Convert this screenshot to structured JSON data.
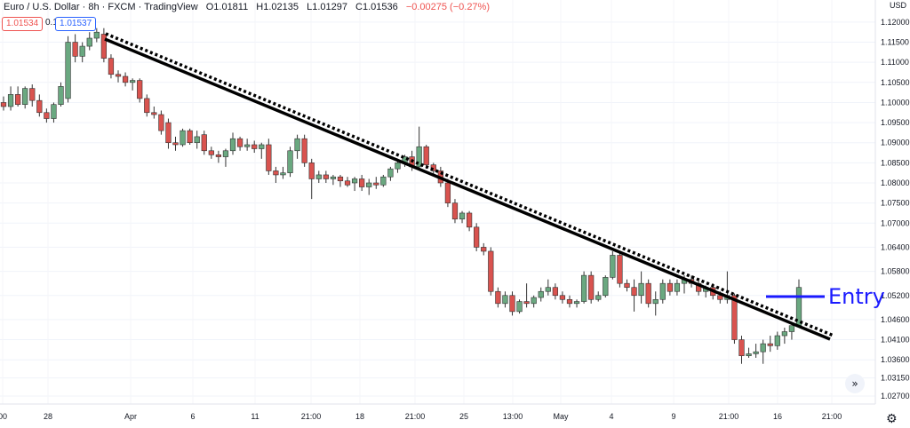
{
  "header": {
    "symbol": "Euro / U.S. Dollar · 8h · FXCM · TradingView",
    "open": "O1.01811",
    "high": "H1.02135",
    "low": "L1.01297",
    "close": "C1.01536",
    "change": "−0.00275 (−0.27%)",
    "bid": "1.01534",
    "spread": "0.1",
    "ask": "1.01537",
    "currency": "USD"
  },
  "colors": {
    "up": "#6aa880",
    "down": "#d9534f",
    "line": "#000000",
    "entry": "#1a1aff",
    "axis_text": "#131722"
  },
  "annotations": {
    "entry_label": "Entry"
  },
  "icons": {
    "scroll": "double-chevron-right-icon",
    "settings": "gear-icon"
  },
  "chart_data": {
    "type": "candlestick",
    "title": "Euro / U.S. Dollar · 8h · FXCM · TradingView",
    "ylim": [
      1.025,
      1.1255
    ],
    "yticks": [
      "1.12000",
      "1.11500",
      "1.11000",
      "1.10500",
      "1.10000",
      "1.09500",
      "1.09000",
      "1.08500",
      "1.08000",
      "1.07500",
      "1.07000",
      "1.06400",
      "1.05800",
      "1.05200",
      "1.04600",
      "1.04100",
      "1.03600",
      "1.03150",
      "1.02700"
    ],
    "xticks": [
      "00",
      "28",
      "Apr",
      "6",
      "11",
      "21:00",
      "18",
      "21:00",
      "25",
      "13:00",
      "May",
      "4",
      "9",
      "21:00",
      "16",
      "21:00"
    ],
    "current_price": "1.05200",
    "candles": [
      [
        1.1,
        1.1015,
        1.098,
        1.099
      ],
      [
        1.099,
        1.104,
        1.098,
        1.102
      ],
      [
        1.102,
        1.104,
        1.099,
        1.0995
      ],
      [
        1.0995,
        1.104,
        1.0985,
        1.1035
      ],
      [
        1.1035,
        1.1045,
        1.099,
        1.1005
      ],
      [
        1.1005,
        1.102,
        1.0965,
        1.0975
      ],
      [
        1.0975,
        1.0985,
        1.095,
        1.096
      ],
      [
        1.096,
        1.1,
        1.095,
        1.0995
      ],
      [
        1.0995,
        1.105,
        1.099,
        1.104
      ],
      [
        1.101,
        1.1165,
        1.1,
        1.115
      ],
      [
        1.115,
        1.117,
        1.11,
        1.1115
      ],
      [
        1.1115,
        1.115,
        1.11,
        1.114
      ],
      [
        1.114,
        1.1175,
        1.113,
        1.116
      ],
      [
        1.116,
        1.1185,
        1.115,
        1.1175
      ],
      [
        1.117,
        1.1185,
        1.11,
        1.111
      ],
      [
        1.111,
        1.112,
        1.106,
        1.107
      ],
      [
        1.107,
        1.108,
        1.105,
        1.1065
      ],
      [
        1.1065,
        1.1075,
        1.104,
        1.105
      ],
      [
        1.105,
        1.106,
        1.103,
        1.1055
      ],
      [
        1.1055,
        1.106,
        1.1,
        1.101
      ],
      [
        1.101,
        1.102,
        1.0965,
        1.0975
      ],
      [
        1.0975,
        1.099,
        1.096,
        1.097
      ],
      [
        1.097,
        1.098,
        1.092,
        1.093
      ],
      [
        1.095,
        1.096,
        1.0885,
        1.09
      ],
      [
        1.09,
        1.0915,
        1.088,
        1.0895
      ],
      [
        1.0895,
        1.0935,
        1.089,
        1.093
      ],
      [
        1.093,
        1.0935,
        1.0895,
        1.09
      ],
      [
        1.09,
        1.093,
        1.0885,
        1.0915
      ],
      [
        1.092,
        1.093,
        1.087,
        1.088
      ],
      [
        1.088,
        1.089,
        1.086,
        1.087
      ],
      [
        1.087,
        1.088,
        1.085,
        1.0865
      ],
      [
        1.0865,
        1.0885,
        1.084,
        1.088
      ],
      [
        1.088,
        1.0925,
        1.087,
        1.091
      ],
      [
        1.091,
        1.0915,
        1.088,
        1.089
      ],
      [
        1.089,
        1.091,
        1.088,
        1.0895
      ],
      [
        1.0895,
        1.0905,
        1.0875,
        1.0885
      ],
      [
        1.0885,
        1.09,
        1.086,
        1.0895
      ],
      [
        1.0895,
        1.091,
        1.082,
        1.083
      ],
      [
        1.083,
        1.084,
        1.08,
        1.082
      ],
      [
        1.082,
        1.084,
        1.081,
        1.0825
      ],
      [
        1.0825,
        1.089,
        1.0815,
        1.088
      ],
      [
        1.088,
        1.092,
        1.086,
        1.091
      ],
      [
        1.091,
        1.092,
        1.084,
        1.085
      ],
      [
        1.085,
        1.086,
        1.076,
        1.081
      ],
      [
        1.081,
        1.083,
        1.08,
        1.082
      ],
      [
        1.082,
        1.083,
        1.08,
        1.081
      ],
      [
        1.081,
        1.082,
        1.0795,
        1.0815
      ],
      [
        1.0815,
        1.082,
        1.079,
        1.0805
      ],
      [
        1.0805,
        1.0815,
        1.079,
        1.0795
      ],
      [
        1.08,
        1.0815,
        1.078,
        1.081
      ],
      [
        1.081,
        1.082,
        1.078,
        1.079
      ],
      [
        1.079,
        1.081,
        1.077,
        1.08
      ],
      [
        1.08,
        1.0815,
        1.0785,
        1.0795
      ],
      [
        1.0795,
        1.082,
        1.079,
        1.0815
      ],
      [
        1.0815,
        1.084,
        1.0805,
        1.0835
      ],
      [
        1.0835,
        1.086,
        1.0825,
        1.085
      ],
      [
        1.085,
        1.087,
        1.084,
        1.0865
      ],
      [
        1.0865,
        1.088,
        1.083,
        1.084
      ],
      [
        1.084,
        1.094,
        1.0835,
        1.089
      ],
      [
        1.089,
        1.0895,
        1.0835,
        1.0845
      ],
      [
        1.0845,
        1.085,
        1.082,
        1.083
      ],
      [
        1.083,
        1.084,
        1.079,
        1.08
      ],
      [
        1.08,
        1.081,
        1.074,
        1.075
      ],
      [
        1.075,
        1.076,
        1.07,
        1.071
      ],
      [
        1.071,
        1.073,
        1.07,
        1.0725
      ],
      [
        1.0725,
        1.073,
        1.068,
        1.069
      ],
      [
        1.069,
        1.07,
        1.063,
        1.064
      ],
      [
        1.064,
        1.065,
        1.062,
        1.063
      ],
      [
        1.063,
        1.064,
        1.052,
        1.053
      ],
      [
        1.053,
        1.054,
        1.049,
        1.05
      ],
      [
        1.05,
        1.053,
        1.049,
        1.052
      ],
      [
        1.052,
        1.053,
        1.047,
        1.048
      ],
      [
        1.048,
        1.051,
        1.0475,
        1.0505
      ],
      [
        1.0505,
        1.055,
        1.049,
        1.05
      ],
      [
        1.05,
        1.052,
        1.049,
        1.0515
      ],
      [
        1.0515,
        1.054,
        1.0505,
        1.053
      ],
      [
        1.053,
        1.056,
        1.052,
        1.054
      ],
      [
        1.054,
        1.055,
        1.051,
        1.052
      ],
      [
        1.052,
        1.053,
        1.05,
        1.051
      ],
      [
        1.051,
        1.052,
        1.049,
        1.05
      ],
      [
        1.05,
        1.051,
        1.049,
        1.0505
      ],
      [
        1.0505,
        1.058,
        1.05,
        1.057
      ],
      [
        1.057,
        1.058,
        1.05,
        1.051
      ],
      [
        1.051,
        1.053,
        1.0505,
        1.052
      ],
      [
        1.052,
        1.057,
        1.0515,
        1.0565
      ],
      [
        1.0565,
        1.063,
        1.056,
        1.062
      ],
      [
        1.062,
        1.063,
        1.054,
        1.055
      ],
      [
        1.055,
        1.056,
        1.053,
        1.054
      ],
      [
        1.054,
        1.056,
        1.048,
        1.052
      ],
      [
        1.052,
        1.058,
        1.05,
        1.055
      ],
      [
        1.055,
        1.056,
        1.049,
        1.05
      ],
      [
        1.05,
        1.053,
        1.047,
        1.051
      ],
      [
        1.051,
        1.056,
        1.05,
        1.055
      ],
      [
        1.055,
        1.056,
        1.052,
        1.053
      ],
      [
        1.053,
        1.056,
        1.052,
        1.055
      ],
      [
        1.055,
        1.057,
        1.0525,
        1.056
      ],
      [
        1.056,
        1.057,
        1.054,
        1.055
      ],
      [
        1.055,
        1.056,
        1.052,
        1.053
      ],
      [
        1.053,
        1.0545,
        1.0515,
        1.054
      ],
      [
        1.054,
        1.055,
        1.051,
        1.052
      ],
      [
        1.052,
        1.053,
        1.05,
        1.051
      ],
      [
        1.051,
        1.058,
        1.05,
        1.052
      ],
      [
        1.052,
        1.0525,
        1.04,
        1.041
      ],
      [
        1.041,
        1.042,
        1.035,
        1.037
      ],
      [
        1.037,
        1.039,
        1.0365,
        1.0375
      ],
      [
        1.0375,
        1.04,
        1.0365,
        1.038
      ],
      [
        1.038,
        1.041,
        1.035,
        1.04
      ],
      [
        1.04,
        1.042,
        1.038,
        1.0395
      ],
      [
        1.0395,
        1.043,
        1.0385,
        1.042
      ],
      [
        1.042,
        1.044,
        1.04,
        1.043
      ],
      [
        1.043,
        1.044,
        1.041,
        1.0445
      ],
      [
        1.0445,
        1.056,
        1.044,
        1.054
      ]
    ],
    "lines": [
      {
        "style": "solid",
        "from": [
          1.119
        ],
        "to": [
          1.042
        ]
      },
      {
        "style": "dotted",
        "from": [
          1.121
        ],
        "to": [
          1.044
        ]
      }
    ],
    "entry": {
      "label": "Entry",
      "price": 1.0545
    }
  }
}
